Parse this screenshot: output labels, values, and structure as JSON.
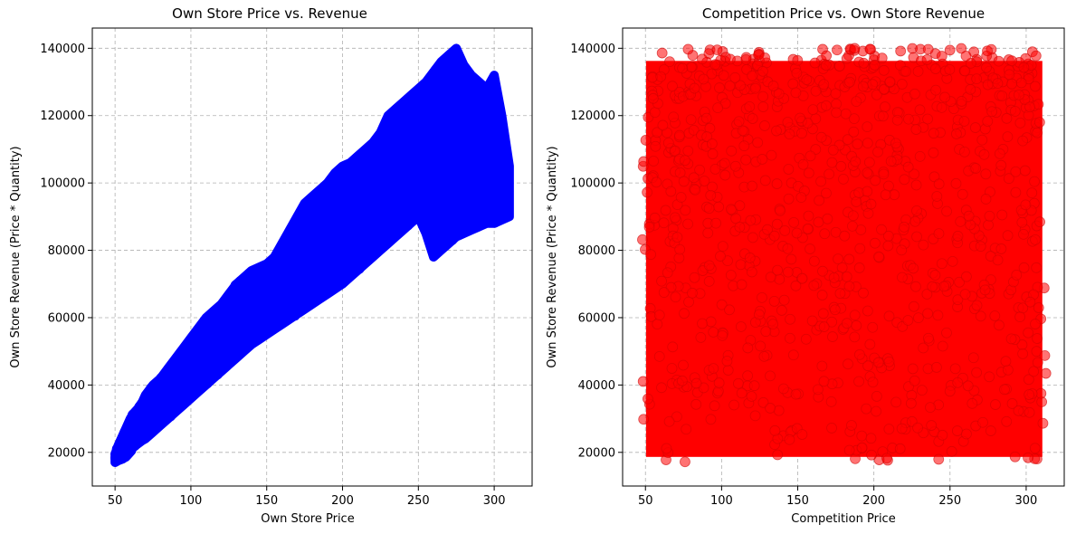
{
  "chart_data": [
    {
      "type": "scatter",
      "title": "Own Store Price vs. Revenue",
      "xlabel": "Own Store Price",
      "ylabel": "Own Store Revenue (Price * Quantity)",
      "xlim": [
        35,
        325
      ],
      "ylim": [
        10000,
        146000
      ],
      "xticks": [
        50,
        100,
        150,
        200,
        250,
        300
      ],
      "yticks": [
        20000,
        40000,
        60000,
        80000,
        100000,
        120000,
        140000
      ],
      "grid": true,
      "color": "#0000ff",
      "alpha": 1.0,
      "series": [
        {
          "x": [
            50,
            52,
            55,
            58,
            60,
            62,
            65,
            68,
            70,
            75,
            80,
            85,
            90,
            95,
            100,
            105,
            110,
            115,
            120,
            125,
            130,
            135,
            140,
            145,
            150,
            155,
            160,
            165,
            170,
            175,
            180,
            185,
            190,
            195,
            200,
            205,
            210,
            215,
            220,
            225,
            230,
            235,
            240,
            245,
            250,
            255,
            260,
            265,
            270,
            275,
            280,
            285,
            290,
            295,
            300,
            305,
            310
          ],
          "y_min": [
            17000,
            17500,
            18000,
            19000,
            20000,
            21500,
            22500,
            23500,
            24000,
            26000,
            28000,
            30000,
            32000,
            34000,
            36000,
            38000,
            40000,
            42000,
            44000,
            46000,
            48000,
            50000,
            52000,
            53500,
            55000,
            56500,
            58000,
            59500,
            61000,
            62500,
            64000,
            65500,
            67000,
            68500,
            70000,
            72000,
            74000,
            76000,
            78000,
            80000,
            82000,
            84000,
            86000,
            88000,
            90000,
            85000,
            78000,
            80000,
            82000,
            84000,
            85000,
            86000,
            87000,
            88000,
            88000,
            89000,
            90000
          ],
          "y_max": [
            19500,
            22000,
            25000,
            28000,
            30000,
            31500,
            33000,
            35000,
            37000,
            40000,
            42000,
            45000,
            48000,
            51000,
            54000,
            57000,
            60000,
            62000,
            64000,
            67000,
            70000,
            72000,
            74000,
            75000,
            76000,
            78000,
            82000,
            86000,
            90000,
            94000,
            96000,
            98000,
            100000,
            103000,
            105000,
            106000,
            108000,
            110000,
            112000,
            115000,
            120000,
            122000,
            124000,
            126000,
            128000,
            130000,
            133000,
            136000,
            138000,
            140000,
            135000,
            132000,
            130000,
            128000,
            132000,
            120000,
            105000
          ]
        }
      ]
    },
    {
      "type": "scatter",
      "title": "Competition Price vs. Own Store Revenue",
      "xlabel": "Competition Price",
      "ylabel": "Own Store Revenue (Price * Quantity)",
      "xlim": [
        35,
        325
      ],
      "ylim": [
        10000,
        146000
      ],
      "xticks": [
        50,
        100,
        150,
        200,
        250,
        300
      ],
      "yticks": [
        20000,
        40000,
        60000,
        80000,
        100000,
        120000,
        140000
      ],
      "grid": true,
      "color": "#ff0000",
      "alpha": 0.55,
      "series": [
        {
          "x_range": [
            48,
            313
          ],
          "y_range": [
            16500,
            140000
          ]
        }
      ]
    }
  ]
}
